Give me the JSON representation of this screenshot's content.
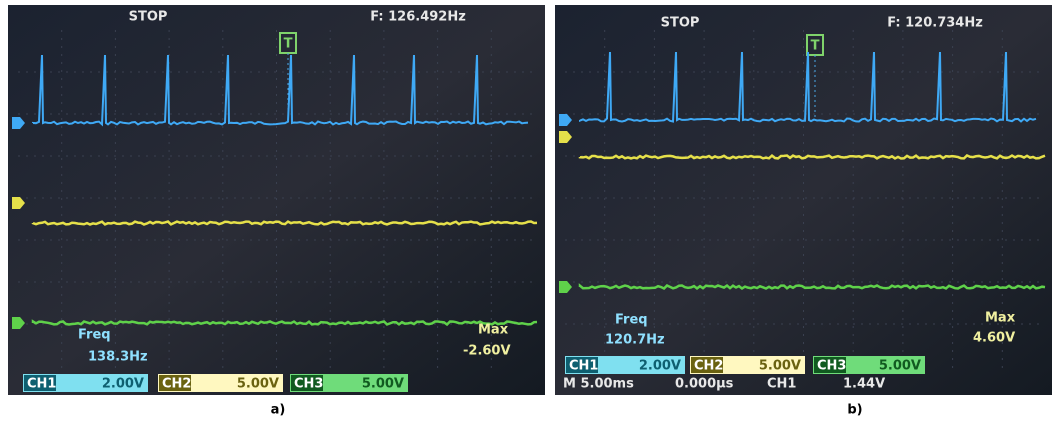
{
  "panels": [
    {
      "status": "STOP",
      "frequency": "F: 126.492Hz",
      "trigger": "T",
      "measure": {
        "label": "Freq",
        "value": "138.3Hz"
      },
      "measure2": {
        "label": "Max",
        "value": "-2.60V"
      },
      "channels": [
        {
          "name": "CH1",
          "scale": "2.00V"
        },
        {
          "name": "CH2",
          "scale": "5.00V"
        },
        {
          "name": "CH3",
          "scale": "5.00V"
        }
      ],
      "caption": "a)"
    },
    {
      "status": "STOP",
      "frequency": "F: 120.734Hz",
      "trigger": "T",
      "measure": {
        "label": "Freq",
        "value": "120.7Hz"
      },
      "measure2": {
        "label": "Max",
        "value": "4.60V"
      },
      "channels": [
        {
          "name": "CH1",
          "scale": "2.00V"
        },
        {
          "name": "CH2",
          "scale": "5.00V"
        },
        {
          "name": "CH3",
          "scale": "5.00V"
        }
      ],
      "timebase": {
        "scale": "M 5.00ms",
        "offset": "0.000μs",
        "source": "CH1",
        "level": "1.44V"
      },
      "caption": "b)"
    }
  ]
}
